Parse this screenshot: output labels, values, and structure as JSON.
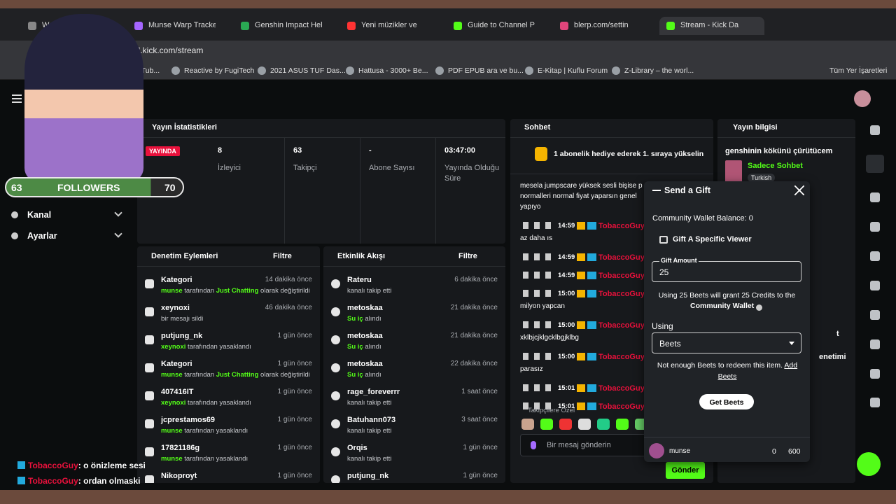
{
  "browser": {
    "tabs": [
      "W",
      "Munse Warp Tracker",
      "Genshin Impact Help",
      "Yeni müzikler ve",
      "Guide to Channel Po",
      "blerp.com/settin",
      "Stream - Kick Da"
    ],
    "url": "ard.kick.com/stream",
    "bookmarks": [
      "ouTub...",
      "Reactive by FugiTech",
      "2021 ASUS TUF Das...",
      "Hattusa - 3000+ Be...",
      "PDF EPUB ara ve bu...",
      "E-Kitap | Kuflu Forum",
      "Z-Library – the worl..."
    ],
    "all_bookmarks": "Tüm Yer İşaretleri"
  },
  "overlay": {
    "followers_count": "63",
    "followers_label": "FOLLOWERS",
    "followers_goal": "70",
    "chat": [
      {
        "user": "TobaccoGuy",
        "text": ": o önizleme sesi"
      },
      {
        "user": "TobaccoGuy",
        "text": ": ordan olmaski"
      }
    ]
  },
  "sidebar": {
    "items": [
      "Kanal",
      "Ayarlar"
    ]
  },
  "stats": {
    "title": "Yayın İstatistikleri",
    "badge": "YAYINDA",
    "items": [
      {
        "value": "8",
        "label": "İzleyici"
      },
      {
        "value": "63",
        "label": "Takipçi"
      },
      {
        "value": "-",
        "label": "Abone Sayısı"
      },
      {
        "value": "03:47:00",
        "label": "Yayında Olduğu Süre"
      }
    ]
  },
  "moderation": {
    "title": "Denetim Eylemleri",
    "filter": "Filtre",
    "rows": [
      {
        "name": "Kategori",
        "time": "14 dakika önce",
        "detail": [
          {
            "text": "munse",
            "color": "#53fc18"
          },
          {
            "text": " tarafından "
          },
          {
            "text": "Just Chatting",
            "color": "#53fc18"
          },
          {
            "text": " olarak değiştirildi"
          }
        ]
      },
      {
        "name": "xeynoxi",
        "time": "46 dakika önce",
        "detail": [
          {
            "text": "bir mesajı sildi"
          }
        ]
      },
      {
        "name": "putjung_nk",
        "time": "1 gün önce",
        "detail": [
          {
            "text": "xeynoxi",
            "color": "#53fc18"
          },
          {
            "text": " tarafından yasaklandı"
          }
        ]
      },
      {
        "name": "Kategori",
        "time": "1 gün önce",
        "detail": [
          {
            "text": "munse",
            "color": "#53fc18"
          },
          {
            "text": " tarafından "
          },
          {
            "text": "Just Chatting",
            "color": "#53fc18"
          },
          {
            "text": " olarak değiştirildi"
          }
        ]
      },
      {
        "name": "407416IT",
        "time": "1 gün önce",
        "detail": [
          {
            "text": "xeynoxi",
            "color": "#53fc18"
          },
          {
            "text": " tarafından yasaklandı"
          }
        ]
      },
      {
        "name": "jcprestamos69",
        "time": "1 gün önce",
        "detail": [
          {
            "text": "munse",
            "color": "#53fc18"
          },
          {
            "text": " tarafından yasaklandı"
          }
        ]
      },
      {
        "name": "17821186g",
        "time": "1 gün önce",
        "detail": [
          {
            "text": "munse",
            "color": "#53fc18"
          },
          {
            "text": " tarafından yasaklandı"
          }
        ]
      },
      {
        "name": "Nikoproyt",
        "time": "1 gün önce",
        "detail": []
      }
    ]
  },
  "activity": {
    "title": "Etkinlik Akışı",
    "filter": "Filtre",
    "rows": [
      {
        "name": "Rateru",
        "time": "6 dakika önce",
        "detail": [
          {
            "text": "kanalı takip etti"
          }
        ]
      },
      {
        "name": "metoskaa",
        "time": "21 dakika önce",
        "detail": [
          {
            "text": "Su iç",
            "color": "#53fc18"
          },
          {
            "text": " alındı"
          }
        ]
      },
      {
        "name": "metoskaa",
        "time": "21 dakika önce",
        "detail": [
          {
            "text": "Su iç",
            "color": "#53fc18"
          },
          {
            "text": " alındı"
          }
        ]
      },
      {
        "name": "metoskaa",
        "time": "22 dakika önce",
        "detail": [
          {
            "text": "Su iç",
            "color": "#53fc18"
          },
          {
            "text": " alındı"
          }
        ]
      },
      {
        "name": "rage_foreverrr",
        "time": "1 saat önce",
        "detail": [
          {
            "text": "kanalı takip etti"
          }
        ]
      },
      {
        "name": "Batuhann073",
        "time": "3 saat önce",
        "detail": [
          {
            "text": "kanalı takip etti"
          }
        ]
      },
      {
        "name": "Orqis",
        "time": "1 gün önce",
        "detail": [
          {
            "text": "kanalı takip etti"
          }
        ]
      },
      {
        "name": "putjung_nk",
        "time": "1 gün önce",
        "detail": []
      }
    ]
  },
  "chat": {
    "title": "Sohbet",
    "pinned": "1 abonelik hediye ederek 1. sıraya yükselin",
    "messages": [
      {
        "lines": [
          "mesela jumpscare yüksek sesli bişise p",
          "normalleri normal fiyat yaparsın genel",
          "yapıyo"
        ]
      },
      {
        "time": "14:59",
        "user": "TobaccoGuy:",
        "lines": [
          "az daha ıs"
        ]
      },
      {
        "time": "14:59",
        "user": "TobaccoGuy:",
        "lines": []
      },
      {
        "time": "14:59",
        "user": "TobaccoGuy:",
        "lines": []
      },
      {
        "time": "15:00",
        "user": "TobaccoGuy:",
        "lines": [
          "milyon yapcan"
        ]
      },
      {
        "time": "15:00",
        "user": "TobaccoGuy:",
        "lines": [
          "xklbjcjklgcklbgjklbg"
        ]
      },
      {
        "time": "15:00",
        "user": "TobaccoGuy:",
        "lines": [
          "parasız"
        ]
      },
      {
        "time": "15:01",
        "user": "TobaccoGuy:",
        "lines": []
      },
      {
        "time": "15:01",
        "user": "TobaccoGuy:",
        "lines": []
      }
    ],
    "followers_only": "Takipçilere Özel",
    "placeholder": "Bir mesaj gönderin",
    "send": "Gönder"
  },
  "gift": {
    "title": "Send a Gift",
    "balance": "Community Wallet Balance: 0",
    "specific": "Gift A Specific Viewer",
    "amount_label": "Gift Amount",
    "amount": "25",
    "info": "Using 25 Beets will grant 25 Credits to the",
    "wallet": "Community Wallet",
    "using_label": "Using",
    "currency": "Beets",
    "warning": "Not enough Beets to redeem this item.",
    "add": "Add Beets",
    "get": "Get Beets",
    "user": "munse",
    "kicks": "0",
    "beets": "600"
  },
  "stream_info": {
    "title": "Yayın bilgisi",
    "stream_title": "genshinin kökünü çürütücem",
    "category": "Sadece Sohbet",
    "language": "Turkish",
    "partial_a": "t",
    "partial_b": "enetimi"
  }
}
